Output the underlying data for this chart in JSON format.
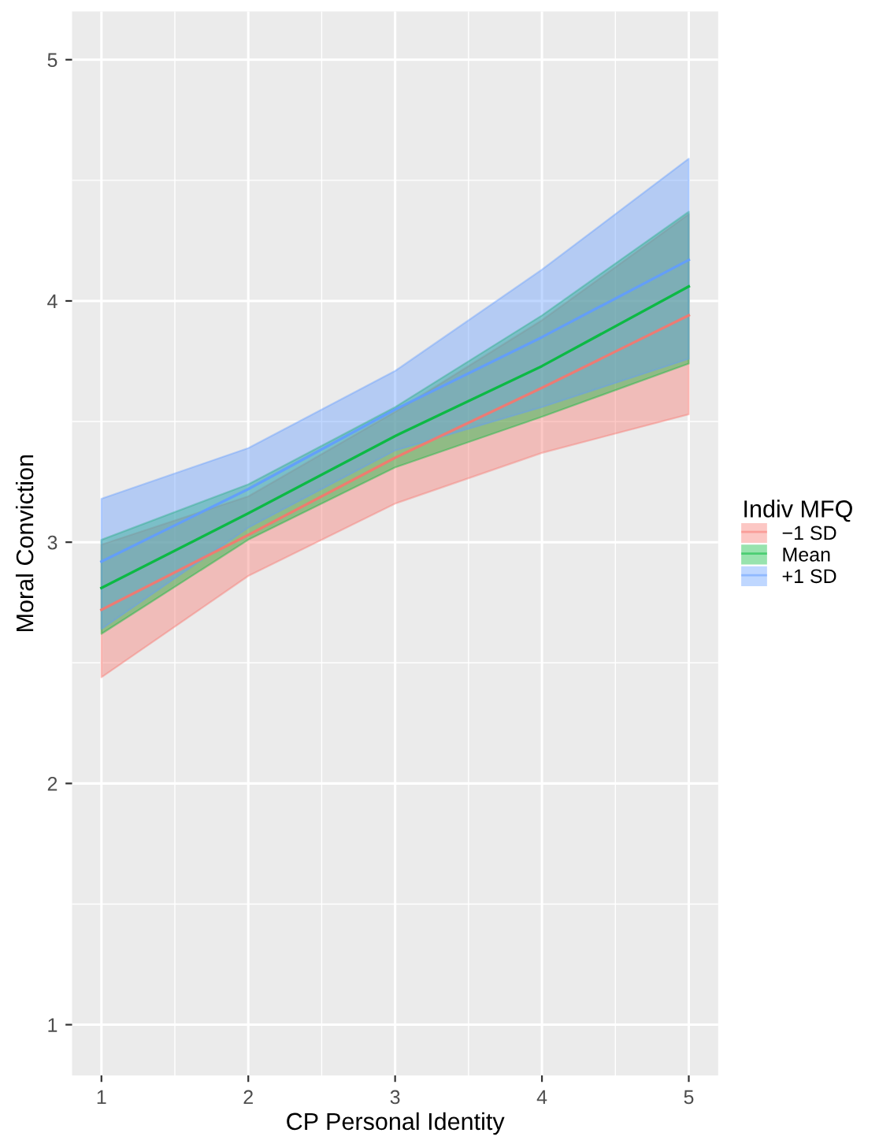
{
  "chart_data": {
    "type": "line",
    "xlabel": "CP Personal Identity",
    "ylabel": "Moral Conviction",
    "legend_title": "Indiv MFQ",
    "x": [
      1,
      2,
      3,
      4,
      5
    ],
    "series": [
      {
        "name": "−1 SD",
        "color": "#f8766d",
        "values": [
          2.72,
          3.03,
          3.35,
          3.64,
          3.94
        ],
        "lower": [
          2.44,
          2.86,
          3.16,
          3.37,
          3.53
        ],
        "upper": [
          2.99,
          3.19,
          3.54,
          3.92,
          4.36
        ]
      },
      {
        "name": "Mean",
        "color": "#00ba38",
        "values": [
          2.81,
          3.12,
          3.44,
          3.73,
          4.06
        ],
        "lower": [
          2.62,
          3.01,
          3.31,
          3.52,
          3.74
        ],
        "upper": [
          3.01,
          3.24,
          3.56,
          3.94,
          4.37
        ]
      },
      {
        "name": "+1 SD",
        "color": "#619cff",
        "values": [
          2.92,
          3.22,
          3.55,
          3.85,
          4.17
        ],
        "lower": [
          2.64,
          3.06,
          3.38,
          3.56,
          3.76
        ],
        "upper": [
          3.18,
          3.39,
          3.71,
          4.13,
          4.59
        ]
      }
    ],
    "xlim": [
      0.8,
      5.2
    ],
    "ylim": [
      0.79,
      5.2
    ],
    "xticks": [
      1,
      2,
      3,
      4,
      5
    ],
    "yticks": [
      1,
      2,
      3,
      4,
      5
    ],
    "grid": true,
    "legend": "right",
    "line_style": "solid",
    "marker": "none"
  }
}
